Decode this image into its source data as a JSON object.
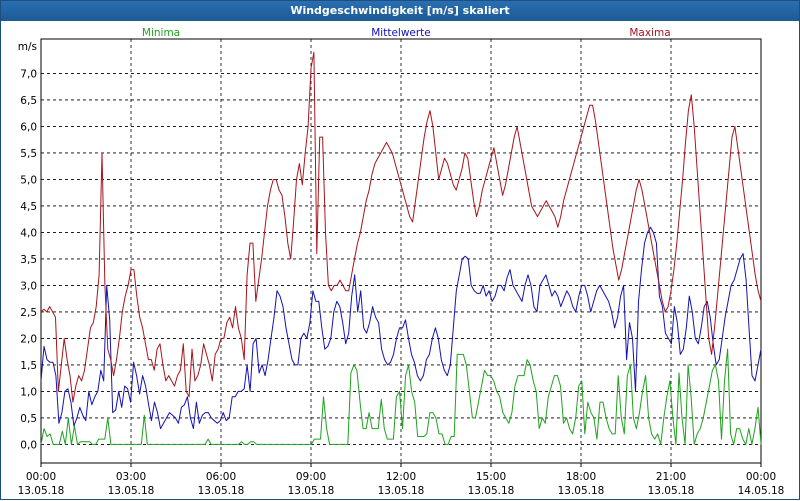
{
  "window": {
    "title": "Windgeschwindigkeit [m/s] skaliert"
  },
  "colors": {
    "minima": "#1fa21f",
    "mittelwerte": "#1212b4",
    "maxima": "#a8141c",
    "grid": "#000000"
  },
  "chart_data": {
    "type": "line",
    "title": "Windgeschwindigkeit [m/s] skaliert",
    "ylabel": "m/s",
    "xlabel": "",
    "ylim": [
      -0.35,
      7.65
    ],
    "xlim_hours": [
      0,
      24
    ],
    "y_ticks": [
      "0,0",
      "0,5",
      "1,0",
      "1,5",
      "2,0",
      "2,5",
      "3,0",
      "3,5",
      "4,0",
      "4,5",
      "5,0",
      "5,5",
      "6,0",
      "6,5",
      "7,0"
    ],
    "x_ticks": [
      {
        "time": "00:00",
        "date": "13.05.18"
      },
      {
        "time": "03:00",
        "date": "13.05.18"
      },
      {
        "time": "06:00",
        "date": "13.05.18"
      },
      {
        "time": "09:00",
        "date": "13.05.18"
      },
      {
        "time": "12:00",
        "date": "13.05.18"
      },
      {
        "time": "15:00",
        "date": "13.05.18"
      },
      {
        "time": "18:00",
        "date": "13.05.18"
      },
      {
        "time": "21:00",
        "date": "13.05.18"
      },
      {
        "time": "00:00",
        "date": "14.05.18"
      }
    ],
    "grid": true,
    "legend": [
      "Minima",
      "Mittelwerte",
      "Maxima"
    ],
    "series": [
      {
        "name": "Minima",
        "values": [
          0.0,
          0.3,
          0.15,
          0.2,
          0.0,
          0.0,
          0.0,
          0.25,
          0.0,
          0.5,
          0.0,
          0.35,
          0.0,
          0.05,
          0.05,
          0.05,
          0.05,
          0.0,
          0.0,
          0.1,
          0.1,
          0.1,
          0.5,
          0.0,
          0.0,
          0.0,
          0.0,
          0.0,
          0.0,
          0.0,
          0.0,
          0.0,
          0.0,
          0.0,
          0.55,
          0.0,
          0.0,
          0.0,
          0.0,
          0.0,
          0.0,
          0.0,
          0.0,
          0.0,
          0.0,
          0.0,
          0.0,
          0.0,
          0.0,
          0.0,
          0.0,
          0.0,
          0.0,
          0.0,
          0.0,
          0.1,
          0.0,
          0.0,
          0.0,
          0.0,
          0.0,
          0.0,
          0.0,
          0.0,
          0.0,
          0.0,
          0.05,
          0.0,
          0.0,
          0.05,
          0.05,
          0.0,
          0.0,
          0.0,
          0.0,
          0.0,
          0.0,
          0.0,
          0.0,
          0.0,
          0.0,
          0.0,
          0.0,
          0.0,
          0.0,
          0.0,
          0.0,
          0.0,
          0.0,
          0.0,
          0.1,
          0.1,
          0.1,
          0.9,
          0.3,
          0.0,
          0.0,
          0.0,
          0.0,
          0.0,
          0.0,
          0.0,
          1.35,
          1.5,
          1.4,
          0.8,
          0.3,
          0.3,
          0.6,
          0.3,
          0.3,
          0.3,
          0.85,
          0.3,
          0.1,
          0.1,
          0.1,
          0.9,
          1.0,
          0.3,
          1.3,
          1.5,
          1.0,
          0.8,
          0.15,
          0.15,
          0.15,
          0.2,
          0.6,
          0.6,
          0.5,
          0.2,
          0.2,
          0.0,
          0.0,
          0.15,
          0.15,
          1.7,
          1.7,
          1.7,
          1.5,
          1.0,
          0.5,
          0.5,
          0.8,
          1.1,
          1.4,
          1.3,
          1.3,
          1.2,
          1.0,
          0.9,
          0.6,
          0.5,
          0.4,
          0.6,
          1.1,
          1.3,
          1.3,
          1.3,
          1.6,
          1.5,
          1.2,
          1.0,
          0.3,
          0.5,
          0.4,
          0.9,
          1.1,
          1.3,
          1.3,
          1.1,
          0.4,
          0.5,
          0.3,
          0.2,
          0.5,
          1.1,
          1.2,
          0.2,
          0.8,
          0.6,
          0.5,
          0.1,
          0.8,
          0.8,
          0.5,
          0.3,
          0.2,
          0.2,
          1.3,
          0.5,
          0.2,
          1.3,
          1.5,
          0.5,
          0.3,
          0.6,
          1.0,
          1.3,
          0.5,
          0.2,
          0.1,
          0.2,
          0.0,
          0.5,
          0.9,
          1.2,
          0.5,
          0.0,
          1.35,
          0.5,
          0.0,
          1.5,
          0.9,
          0.0,
          0.2,
          0.3,
          0.5,
          0.8,
          1.1,
          1.4,
          1.5,
          1.2,
          0.1,
          1.2,
          1.8,
          0.2,
          0.0,
          0.3,
          0.3,
          0.1,
          0.0,
          0.3,
          0.0,
          0.3,
          0.7,
          0.0
        ],
        "x_start_hours": 0,
        "x_step_hours": 0.1
      },
      {
        "name": "Mittelwerte",
        "values": [
          1.2,
          1.85,
          1.6,
          1.55,
          1.55,
          1.3,
          0.4,
          0.6,
          1.0,
          1.05,
          0.8,
          0.35,
          0.5,
          0.7,
          0.55,
          0.45,
          1.0,
          0.75,
          0.9,
          1.0,
          1.4,
          1.2,
          3.0,
          2.35,
          0.6,
          0.65,
          1.0,
          0.7,
          1.1,
          1.05,
          0.8,
          1.55,
          1.3,
          0.95,
          1.3,
          1.1,
          0.75,
          0.45,
          0.8,
          0.6,
          0.3,
          0.4,
          0.5,
          0.6,
          0.55,
          0.5,
          0.4,
          0.7,
          0.75,
          0.9,
          0.5,
          0.3,
          0.8,
          0.4,
          0.55,
          0.6,
          0.6,
          0.5,
          0.45,
          0.4,
          0.45,
          0.6,
          0.45,
          0.5,
          0.9,
          0.9,
          1.0,
          1.0,
          1.05,
          1.5,
          1.0,
          1.9,
          2.0,
          1.35,
          1.5,
          1.3,
          1.6,
          2.0,
          2.4,
          2.9,
          2.8,
          2.6,
          2.2,
          1.9,
          1.6,
          1.5,
          1.5,
          2.0,
          2.1,
          2.0,
          2.3,
          2.9,
          2.7,
          2.7,
          2.2,
          1.8,
          1.85,
          2.0,
          2.5,
          2.7,
          2.6,
          2.3,
          1.9,
          2.1,
          2.8,
          3.2,
          2.5,
          2.9,
          2.2,
          2.1,
          2.3,
          2.6,
          2.4,
          2.3,
          1.8,
          1.6,
          1.5,
          1.55,
          1.7,
          2.0,
          2.2,
          2.2,
          2.35,
          2.0,
          1.7,
          1.55,
          1.3,
          1.2,
          1.3,
          1.6,
          1.7,
          2.0,
          2.2,
          2.0,
          1.6,
          1.4,
          1.3,
          1.5,
          2.2,
          2.9,
          3.2,
          3.5,
          3.55,
          3.5,
          3.0,
          2.9,
          2.85,
          2.85,
          3.0,
          2.8,
          2.9,
          2.7,
          2.8,
          3.0,
          3.0,
          2.9,
          3.15,
          3.3,
          3.0,
          2.9,
          2.8,
          2.7,
          3.0,
          3.2,
          3.0,
          2.6,
          2.5,
          3.0,
          3.1,
          3.2,
          3.0,
          2.8,
          2.9,
          2.8,
          2.6,
          2.75,
          2.9,
          2.8,
          2.6,
          2.5,
          2.8,
          3.0,
          3.0,
          2.8,
          2.5,
          2.7,
          2.9,
          3.0,
          2.9,
          2.8,
          2.7,
          2.5,
          2.2,
          2.4,
          2.8,
          3.0,
          1.6,
          2.3,
          2.0,
          1.0,
          2.7,
          3.3,
          3.8,
          4.0,
          4.1,
          4.0,
          3.8,
          2.8,
          2.6,
          2.1,
          2.0,
          1.9,
          2.6,
          2.3,
          1.7,
          1.8,
          2.2,
          2.8,
          2.5,
          2.0,
          1.9,
          2.2,
          2.6,
          2.7,
          2.4,
          1.9,
          1.5,
          1.6,
          2.0,
          2.4,
          2.7,
          3.0,
          3.1,
          3.3,
          3.5,
          3.6,
          3.1,
          2.2,
          1.3,
          1.2,
          1.5,
          1.8
        ]
      },
      {
        "name": "Maxima",
        "values": [
          2.5,
          2.55,
          2.5,
          2.6,
          2.5,
          2.4,
          1.0,
          1.5,
          2.0,
          1.6,
          1.3,
          0.8,
          1.1,
          1.3,
          1.2,
          1.4,
          1.8,
          2.2,
          2.3,
          2.6,
          3.2,
          5.5,
          3.0,
          1.8,
          1.6,
          1.3,
          1.6,
          2.0,
          2.5,
          2.8,
          3.0,
          3.3,
          3.3,
          2.8,
          2.4,
          2.2,
          1.9,
          1.6,
          1.6,
          1.4,
          1.8,
          1.9,
          1.5,
          1.2,
          1.3,
          1.2,
          1.1,
          1.3,
          1.4,
          1.9,
          1.0,
          0.9,
          1.8,
          1.2,
          1.3,
          1.5,
          1.9,
          1.7,
          1.5,
          1.2,
          1.7,
          1.8,
          2.0,
          2.0,
          2.3,
          2.4,
          2.2,
          2.6,
          2.2,
          2.0,
          1.6,
          3.2,
          3.8,
          3.8,
          2.7,
          3.1,
          3.5,
          4.0,
          4.5,
          4.8,
          5.0,
          5.0,
          4.8,
          4.7,
          4.3,
          3.8,
          3.5,
          4.2,
          5.0,
          5.3,
          4.9,
          5.5,
          6.0,
          7.1,
          7.4,
          3.6,
          5.8,
          5.8,
          4.0,
          3.0,
          2.9,
          3.0,
          3.0,
          3.1,
          3.0,
          2.9,
          2.9,
          3.2,
          3.5,
          3.8,
          4.0,
          4.3,
          4.6,
          4.8,
          5.1,
          5.3,
          5.4,
          5.5,
          5.6,
          5.7,
          5.6,
          5.5,
          5.3,
          5.1,
          4.9,
          4.7,
          4.5,
          4.3,
          4.2,
          4.6,
          5.0,
          5.4,
          5.8,
          6.1,
          6.3,
          6.0,
          5.5,
          5.0,
          5.2,
          5.4,
          5.3,
          5.1,
          4.9,
          4.8,
          5.0,
          5.2,
          5.5,
          5.4,
          5.0,
          4.6,
          4.3,
          4.5,
          4.8,
          5.0,
          5.2,
          5.4,
          5.6,
          5.3,
          5.0,
          4.7,
          4.9,
          5.2,
          5.5,
          5.8,
          6.0,
          5.7,
          5.4,
          5.1,
          4.8,
          4.5,
          4.4,
          4.3,
          4.4,
          4.5,
          4.6,
          4.5,
          4.4,
          4.3,
          4.1,
          4.3,
          4.6,
          4.8,
          5.0,
          5.2,
          5.4,
          5.6,
          5.8,
          6.0,
          6.2,
          6.4,
          6.4,
          6.1,
          5.7,
          5.3,
          4.9,
          4.5,
          4.1,
          3.7,
          3.4,
          3.1,
          3.3,
          3.6,
          3.9,
          4.2,
          4.5,
          4.8,
          5.0,
          4.8,
          4.5,
          4.2,
          3.9,
          3.6,
          3.3,
          3.0,
          2.7,
          2.5,
          2.6,
          2.9,
          3.3,
          3.8,
          4.4,
          5.0,
          5.7,
          6.3,
          6.6,
          6.0,
          5.2,
          4.4,
          3.6,
          2.8,
          2.0,
          1.7,
          2.2,
          2.8,
          3.4,
          4.0,
          4.6,
          5.2,
          5.8,
          6.0,
          5.6,
          5.2,
          4.8,
          4.4,
          4.0,
          3.6,
          3.2,
          2.9,
          2.7
        ]
      }
    ]
  }
}
